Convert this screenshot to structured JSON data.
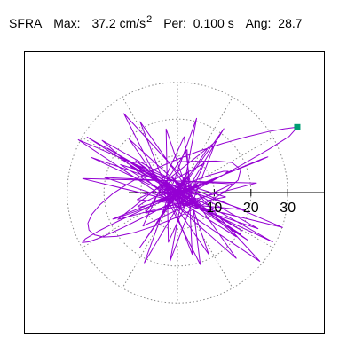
{
  "header": {
    "record_label": "SFRA",
    "max_label": "Max:",
    "max_value": "37.2 cm/s",
    "max_exponent": "2",
    "period_label": "Per:",
    "period_value": "0.100 s",
    "angle_label": "Ang:",
    "angle_value": "28.7"
  },
  "chart_data": {
    "type": "line",
    "subtype": "polar-orbit",
    "title": "SFRA",
    "max_value": 37.2,
    "max_unit": "cm/s^2",
    "period_s": 0.1,
    "angle_deg": 28.7,
    "xlabel": "",
    "ylabel": "",
    "radial_ticks": [
      10,
      20,
      30
    ],
    "tick_labels": [
      "10",
      "20",
      "30"
    ],
    "rings": [
      10,
      20,
      30
    ],
    "spoke_step_deg": 30,
    "grid": true,
    "grid_style": "dotted",
    "colors": {
      "trace": "#9400d3",
      "marker": "#009e73",
      "grid": "#888888",
      "axis": "#000000"
    },
    "peak_point": {
      "x": 32.6,
      "y": 17.8
    },
    "orbit_x": [
      0,
      1.3,
      -2.1,
      3.4,
      -4.6,
      5.2,
      -3.0,
      1.8,
      -0.7,
      4.1,
      -5.0,
      2.6,
      -1.5,
      3.8,
      -4.2,
      2.0,
      -0.3,
      1.1,
      -3.5,
      4.4,
      -2.2,
      0.9,
      3.1,
      -1.8,
      2.4,
      -4.7,
      5.6,
      -3.3,
      1.6,
      -0.5,
      2.8,
      -6.1,
      8.4,
      -10.3,
      12.6,
      -9.0,
      5.2,
      -2.0,
      10.4,
      -16.2,
      21.5,
      -25.8,
      28.6,
      -27.0,
      22.4,
      -14.6,
      6.2,
      1.8,
      -9.4,
      15.0,
      -19.8,
      21.9,
      -20.5,
      16.0,
      -10.2,
      4.0,
      2.6,
      -8.7,
      13.1,
      -15.5,
      16.0,
      -13.2,
      8.5,
      -3.1,
      -2.5,
      7.3,
      -11.0,
      18.2,
      -23.5,
      25.9,
      -24.6,
      19.2,
      -11.4,
      3.0,
      5.5,
      -12.9,
      17.6,
      -19.0,
      17.2,
      -12.5,
      10.4,
      14.8,
      17.2,
      16.5,
      12.8,
      7.1,
      0.8,
      -5.6,
      -11.5,
      -16.4,
      -20.1,
      -22.6,
      -24.1,
      -24.4,
      -23.3,
      -21.0,
      -17.5,
      -12.8,
      -7.2,
      -1.0,
      5.6,
      12.4,
      18.9,
      24.7,
      29.3,
      32.6,
      30.4,
      24.9,
      17.6,
      9.2,
      0.6,
      -7.4,
      -14.6,
      -20.3,
      -24.2,
      -25.9,
      -25.1,
      -21.6,
      -15.8,
      -8.4,
      -0.2,
      7.9,
      15.1,
      20.6,
      23.9,
      24.6,
      22.5,
      17.8,
      11.2,
      3.7,
      -3.8,
      -10.4,
      -15.2,
      -17.6,
      -17.3,
      -14.4,
      -9.3,
      -3.0,
      3.4,
      8.8,
      12.5,
      13.8,
      12.5,
      9.0,
      4.1,
      -1.2,
      -6.0,
      -9.4,
      -10.8,
      -10.0,
      -7.2,
      -3.0,
      1.7,
      5.8,
      8.4,
      8.9,
      7.4,
      4.3,
      0.5,
      -3.1,
      -5.6,
      -6.4,
      -5.3,
      -2.8,
      0.3,
      3.1,
      4.6,
      4.4,
      2.7,
      0.3,
      -2.0,
      -3.4,
      -3.5,
      -2.2,
      -0.1,
      2.0,
      3.3,
      3.4,
      2.3,
      0.5,
      -1.3,
      -2.5,
      -2.6,
      -1.7,
      -0.2,
      1.2,
      2.1,
      2.1,
      1.3,
      0.1,
      -0.9,
      -1.5,
      -1.4,
      -0.8,
      0.1,
      0.7
    ],
    "orbit_y": [
      0,
      -1.0,
      2.3,
      -3.1,
      1.9,
      -0.6,
      2.8,
      -4.0,
      3.5,
      -1.7,
      0.4,
      -2.9,
      4.4,
      -3.2,
      1.1,
      -0.8,
      3.0,
      -4.6,
      2.4,
      -1.3,
      0.2,
      -3.7,
      4.8,
      -2.0,
      1.5,
      -0.9,
      2.6,
      -4.1,
      3.3,
      -1.6,
      5.6,
      -8.9,
      12.3,
      -15.0,
      17.4,
      -19.1,
      20.2,
      -18.6,
      13.9,
      -7.3,
      2.6,
      3.8,
      -9.5,
      14.4,
      -18.7,
      21.5,
      -19.6,
      15.2,
      -9.1,
      2.4,
      4.1,
      -9.8,
      14.2,
      -17.9,
      19.3,
      -16.8,
      11.7,
      -5.5,
      -1.2,
      7.6,
      -12.0,
      14.6,
      -16.8,
      17.3,
      -13.5,
      8.0,
      -1.9,
      -4.7,
      9.6,
      -13.4,
      15.1,
      -13.0,
      8.7,
      -3.1,
      -2.6,
      7.2,
      -10.4,
      12.1,
      -11.3,
      8.2,
      8.6,
      8.2,
      6.3,
      3.4,
      0.1,
      -3.2,
      -6.3,
      -8.9,
      -10.8,
      -11.9,
      -12.1,
      -11.5,
      -10.2,
      -8.3,
      -5.9,
      -3.2,
      -0.2,
      2.8,
      5.9,
      8.7,
      11.2,
      13.4,
      15.2,
      16.6,
      17.4,
      17.8,
      15.3,
      11.8,
      7.6,
      3.0,
      -1.6,
      -5.8,
      -9.4,
      -12.0,
      -13.4,
      -13.6,
      -12.6,
      -10.5,
      -7.6,
      -4.2,
      -0.6,
      2.9,
      5.9,
      8.2,
      9.5,
      9.7,
      8.8,
      6.9,
      4.3,
      1.3,
      -1.7,
      -4.3,
      -6.2,
      -7.2,
      -7.2,
      -6.2,
      -4.4,
      -2.0,
      0.6,
      3.0,
      4.8,
      5.8,
      5.8,
      4.8,
      3.1,
      1.0,
      -1.1,
      -2.8,
      -3.8,
      -3.9,
      -3.1,
      -1.7,
      0.1,
      1.7,
      2.8,
      3.1,
      2.6,
      1.5,
      0.1,
      -1.2,
      -2.1,
      -2.4,
      -2.0,
      -1.1,
      0.1,
      1.1,
      1.7,
      1.7,
      1.1,
      0.2,
      -0.7,
      -1.3,
      -1.3,
      -0.8,
      0.0,
      0.8,
      1.2,
      1.2,
      0.8,
      0.2,
      -0.5,
      -0.9,
      -0.9,
      -0.6,
      -0.1,
      0.4,
      0.7,
      0.7,
      0.4,
      0.0,
      -0.3,
      -0.5,
      -0.5,
      -0.3,
      0.0,
      0.2
    ]
  }
}
